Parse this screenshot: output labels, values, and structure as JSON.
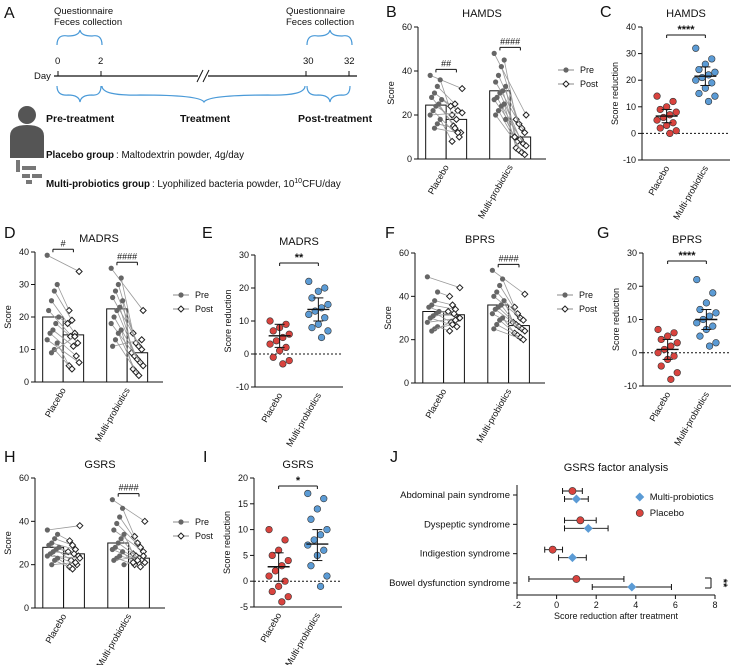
{
  "panels": {
    "A": "A",
    "B": "B",
    "C": "C",
    "D": "D",
    "E": "E",
    "F": "F",
    "G": "G",
    "H": "H",
    "I": "I",
    "J": "J"
  },
  "schematic": {
    "q_left_1": "Questionnaire",
    "q_left_2": "Feces collection",
    "q_right_1": "Questionnaire",
    "q_right_2": "Feces collection",
    "day_label": "Day",
    "days": [
      "0",
      "2",
      "30",
      "32"
    ],
    "pre_treatment": "Pre-treatment",
    "treatment": "Treatment",
    "post_treatment": "Post-treatment",
    "placebo_group_name": "Placebo group",
    "placebo_group_desc": ": Maltodextrin powder, 4g/day",
    "probiotics_group_name": "Multi-probiotics group",
    "probiotics_group_desc": ": Lyophilized bacteria powder, 10",
    "probiotics_exp": "10",
    "probiotics_unit": "CFU/day"
  },
  "legend_prepost": {
    "pre": "Pre",
    "post": "Post"
  },
  "chart_data": [
    {
      "id": "B",
      "type": "bar",
      "title": "HAMDS",
      "ylabel": "Score",
      "ylim": [
        0,
        60
      ],
      "yticks": [
        0,
        20,
        40,
        60
      ],
      "categories": [
        "Placebo",
        "Multi-probiotics"
      ],
      "series": [
        {
          "name": "Pre",
          "values": [
            24.5,
            31
          ]
        },
        {
          "name": "Post",
          "values": [
            18,
            10
          ]
        }
      ],
      "significance": [
        "##",
        "####"
      ],
      "paired": {
        "Placebo": {
          "pre": [
            38,
            36,
            33,
            30,
            28,
            27,
            25,
            24,
            22,
            20,
            18,
            16,
            14
          ],
          "post": [
            32,
            20,
            25,
            22,
            12,
            24,
            15,
            18,
            10,
            21,
            8,
            14,
            12
          ]
        },
        "Multi-probiotics": {
          "pre": [
            48,
            45,
            42,
            38,
            35,
            33,
            31,
            30,
            28,
            27,
            25,
            24,
            22,
            20,
            18
          ],
          "post": [
            20,
            18,
            16,
            14,
            12,
            10,
            8,
            9,
            7,
            6,
            5,
            4,
            3,
            2,
            10
          ]
        }
      }
    },
    {
      "id": "C",
      "type": "scatter",
      "title": "HAMDS",
      "ylabel": "Score reduction",
      "ylim": [
        -10,
        40
      ],
      "yticks": [
        -10,
        0,
        10,
        20,
        30,
        40
      ],
      "categories": [
        "Placebo",
        "Multi-probiotics"
      ],
      "means": [
        6.5,
        21.5
      ],
      "ci": [
        [
          4,
          9
        ],
        [
          18,
          25
        ]
      ],
      "significance": "****",
      "points": {
        "Placebo": [
          14,
          12,
          10,
          9,
          8,
          7,
          6,
          5,
          4,
          3,
          2,
          1,
          0
        ],
        "Multi-probiotics": [
          32,
          28,
          26,
          24,
          23,
          22,
          21,
          20,
          19,
          17,
          15,
          14,
          12
        ]
      }
    },
    {
      "id": "D",
      "type": "bar",
      "title": "MADRS",
      "ylabel": "Score",
      "ylim": [
        0,
        40
      ],
      "yticks": [
        0,
        10,
        20,
        30,
        40
      ],
      "categories": [
        "Placebo",
        "Multi-probiotics"
      ],
      "series": [
        {
          "name": "Pre",
          "values": [
            20,
            22.5
          ]
        },
        {
          "name": "Post",
          "values": [
            14.5,
            9
          ]
        }
      ],
      "significance": [
        "#",
        "####"
      ],
      "paired": {
        "Placebo": {
          "pre": [
            39,
            30,
            28,
            25,
            22,
            20,
            18,
            16,
            15,
            13,
            12,
            10,
            9
          ],
          "post": [
            34,
            22,
            19,
            15,
            12,
            18,
            14,
            11,
            8,
            6,
            5,
            4,
            14
          ]
        },
        "Multi-probiotics": {
          "pre": [
            35,
            32,
            30,
            28,
            26,
            25,
            23,
            22,
            20,
            18,
            16,
            15,
            13,
            11
          ],
          "post": [
            22,
            15,
            12,
            11,
            10,
            9,
            8,
            7,
            6,
            5,
            4,
            3,
            2,
            13
          ]
        }
      }
    },
    {
      "id": "E",
      "type": "scatter",
      "title": "MADRS",
      "ylabel": "Score reduction",
      "ylim": [
        -10,
        30
      ],
      "yticks": [
        -10,
        0,
        10,
        20,
        30
      ],
      "categories": [
        "Placebo",
        "Multi-probiotics"
      ],
      "means": [
        5.5,
        13.5
      ],
      "ci": [
        [
          2,
          9
        ],
        [
          10,
          17
        ]
      ],
      "significance": "**",
      "points": {
        "Placebo": [
          10,
          9,
          8,
          7,
          6,
          5,
          4,
          3,
          2,
          1,
          -1,
          -2,
          -3
        ],
        "Multi-probiotics": [
          22,
          20,
          19,
          17,
          15,
          14,
          13,
          12,
          11,
          9,
          8,
          7,
          5
        ]
      }
    },
    {
      "id": "F",
      "type": "bar",
      "title": "BPRS",
      "ylabel": "Score",
      "ylim": [
        0,
        60
      ],
      "yticks": [
        0,
        20,
        40,
        60
      ],
      "categories": [
        "Placebo",
        "Multi-probiotics"
      ],
      "series": [
        {
          "name": "Pre",
          "values": [
            33,
            36
          ]
        },
        {
          "name": "Post",
          "values": [
            31.5,
            26.5
          ]
        }
      ],
      "significance": [
        "",
        "####"
      ],
      "paired": {
        "Placebo": {
          "pre": [
            49,
            42,
            38,
            36,
            35,
            33,
            32,
            31,
            30,
            28,
            26,
            25,
            24
          ],
          "post": [
            44,
            40,
            36,
            34,
            30,
            33,
            28,
            32,
            26,
            30,
            24,
            27,
            29
          ]
        },
        "Multi-probiotics": {
          "pre": [
            52,
            48,
            45,
            42,
            40,
            38,
            36,
            35,
            34,
            32,
            30,
            29,
            27,
            25
          ],
          "post": [
            41,
            35,
            32,
            30,
            29,
            28,
            27,
            26,
            25,
            24,
            23,
            22,
            21,
            20
          ]
        }
      }
    },
    {
      "id": "G",
      "type": "scatter",
      "title": "BPRS",
      "ylabel": "Score reduction",
      "ylim": [
        -10,
        30
      ],
      "yticks": [
        -10,
        0,
        10,
        20,
        30
      ],
      "categories": [
        "Placebo",
        "Multi-probiotics"
      ],
      "means": [
        1,
        10
      ],
      "ci": [
        [
          -2,
          4
        ],
        [
          7,
          13
        ]
      ],
      "significance": "****",
      "points": {
        "Placebo": [
          7,
          6,
          5,
          4,
          3,
          2,
          1,
          0,
          -1,
          -2,
          -4,
          -6,
          -8
        ],
        "Multi-probiotics": [
          22,
          18,
          15,
          13,
          12,
          11,
          10,
          9,
          8,
          7,
          5,
          3,
          2
        ]
      }
    },
    {
      "id": "H",
      "type": "bar",
      "title": "GSRS",
      "ylabel": "Score",
      "ylim": [
        0,
        60
      ],
      "yticks": [
        0,
        20,
        40,
        60
      ],
      "categories": [
        "Placebo",
        "Multi-probiotics"
      ],
      "series": [
        {
          "name": "Pre",
          "values": [
            28,
            30
          ]
        },
        {
          "name": "Post",
          "values": [
            25,
            23
          ]
        }
      ],
      "significance": [
        "",
        "####"
      ],
      "paired": {
        "Placebo": {
          "pre": [
            36,
            34,
            32,
            30,
            29,
            28,
            27,
            26,
            25,
            24,
            23,
            22,
            20
          ],
          "post": [
            38,
            31,
            29,
            27,
            24,
            26,
            22,
            25,
            20,
            23,
            19,
            18,
            21
          ]
        },
        "Multi-probiotics": {
          "pre": [
            50,
            46,
            42,
            39,
            36,
            34,
            32,
            30,
            28,
            27,
            26,
            24,
            23,
            22,
            20
          ],
          "post": [
            40,
            33,
            30,
            28,
            26,
            25,
            24,
            23,
            22,
            21,
            20,
            22,
            19,
            24,
            21
          ]
        }
      }
    },
    {
      "id": "I",
      "type": "scatter",
      "title": "GSRS",
      "ylabel": "Score reduction",
      "ylim": [
        -5,
        20
      ],
      "yticks": [
        -5,
        0,
        5,
        10,
        15,
        20
      ],
      "categories": [
        "Placebo",
        "Multi-probiotics"
      ],
      "means": [
        2.8,
        7.2
      ],
      "ci": [
        [
          0,
          5.5
        ],
        [
          4,
          10
        ]
      ],
      "significance": "*",
      "points": {
        "Placebo": [
          10,
          8,
          6,
          5,
          4,
          3,
          2,
          1,
          0,
          -1,
          -2,
          -3,
          -4
        ],
        "Multi-probiotics": [
          17,
          16,
          14,
          12,
          10,
          9,
          8,
          7,
          6,
          5,
          3,
          1,
          -1
        ]
      }
    },
    {
      "id": "J",
      "type": "scatter",
      "title": "GSRS factor analysis",
      "xlabel": "Score reduction after treatment",
      "xlim": [
        -2,
        8
      ],
      "xticks": [
        -2,
        0,
        2,
        4,
        6,
        8
      ],
      "categories": [
        "Abdominal pain syndrome",
        "Dyspeptic syndrome",
        "Indigestion syndrome",
        "Bowel dysfunction syndrome"
      ],
      "series": [
        {
          "name": "Multi-probiotics",
          "values": [
            1.0,
            1.6,
            0.8,
            3.8
          ],
          "ci": [
            [
              0.4,
              1.6
            ],
            [
              0.4,
              2.6
            ],
            [
              0.1,
              1.5
            ],
            [
              1.8,
              5.8
            ]
          ]
        },
        {
          "name": "Placebo",
          "values": [
            0.8,
            1.2,
            -0.2,
            1.0
          ],
          "ci": [
            [
              0.3,
              1.3
            ],
            [
              0.4,
              2.0
            ],
            [
              -0.6,
              0.3
            ],
            [
              -1.4,
              3.4
            ]
          ]
        }
      ],
      "significance": "**"
    }
  ]
}
